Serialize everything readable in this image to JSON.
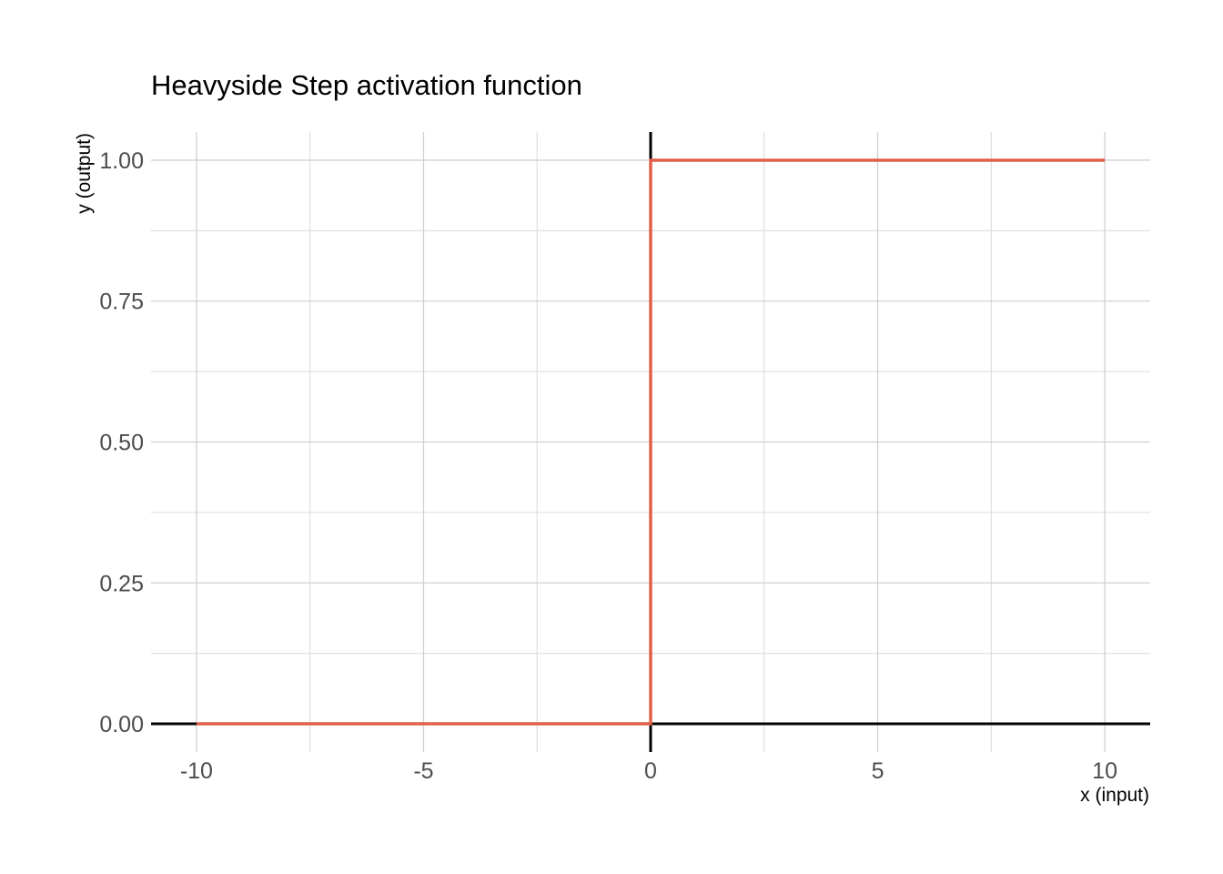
{
  "chart_data": {
    "type": "line",
    "title": "Heavyside Step activation function",
    "xlabel": "x (input)",
    "ylabel": "y (output)",
    "xlim": [
      -11,
      11
    ],
    "ylim": [
      -0.05,
      1.05
    ],
    "x_ticks": [
      -10,
      -5,
      0,
      5,
      10
    ],
    "x_tick_labels": [
      "-10",
      "-5",
      "0",
      "5",
      "10"
    ],
    "x_minor_ticks": [
      -7.5,
      -2.5,
      2.5,
      7.5
    ],
    "y_ticks": [
      0,
      0.25,
      0.5,
      0.75,
      1.0
    ],
    "y_tick_labels": [
      "0.00",
      "0.25",
      "0.50",
      "0.75",
      "1.00"
    ],
    "y_minor_ticks": [
      0.125,
      0.375,
      0.625,
      0.875
    ],
    "grid": true,
    "series": [
      {
        "color": "#e0604a",
        "x": [
          -10,
          0,
          0,
          10
        ],
        "y": [
          0,
          0,
          1,
          1
        ]
      }
    ]
  }
}
